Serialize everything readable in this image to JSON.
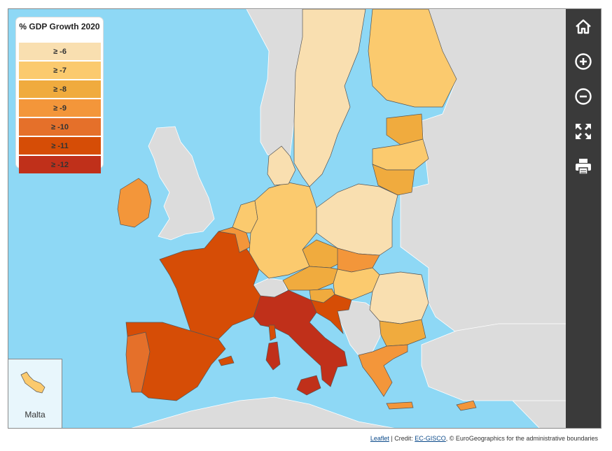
{
  "legend": {
    "title": "% GDP Growth 2020",
    "classes": [
      {
        "label": "≥ -6",
        "color": "#f9dfb0"
      },
      {
        "label": "≥ -7",
        "color": "#fbca6e"
      },
      {
        "label": "≥ -8",
        "color": "#f0ab3e"
      },
      {
        "label": "≥ -9",
        "color": "#f3963a"
      },
      {
        "label": "≥ -10",
        "color": "#e5702a"
      },
      {
        "label": "≥ -11",
        "color": "#d64d06"
      },
      {
        "label": "≥ -12",
        "color": "#c0301a"
      }
    ]
  },
  "map": {
    "sea_color": "#8ed8f5",
    "non_eu_color": "#dcdcdc",
    "countries": [
      {
        "name": "Ireland",
        "class": 3
      },
      {
        "name": "Portugal",
        "class": 4
      },
      {
        "name": "Spain",
        "class": 5
      },
      {
        "name": "France",
        "class": 5
      },
      {
        "name": "Belgium",
        "class": 3
      },
      {
        "name": "Netherlands",
        "class": 1
      },
      {
        "name": "Germany",
        "class": 1
      },
      {
        "name": "Denmark",
        "class": 0
      },
      {
        "name": "Sweden",
        "class": 0
      },
      {
        "name": "Finland",
        "class": 1
      },
      {
        "name": "Estonia",
        "class": 2
      },
      {
        "name": "Latvia",
        "class": 1
      },
      {
        "name": "Lithuania",
        "class": 2
      },
      {
        "name": "Poland",
        "class": 0
      },
      {
        "name": "Czechia",
        "class": 2
      },
      {
        "name": "Slovakia",
        "class": 3
      },
      {
        "name": "Austria",
        "class": 2
      },
      {
        "name": "Hungary",
        "class": 1
      },
      {
        "name": "Slovenia",
        "class": 2
      },
      {
        "name": "Croatia",
        "class": 5
      },
      {
        "name": "Italy",
        "class": 6
      },
      {
        "name": "Romania",
        "class": 0
      },
      {
        "name": "Bulgaria",
        "class": 2
      },
      {
        "name": "Greece",
        "class": 3
      },
      {
        "name": "Cyprus",
        "class": 3
      },
      {
        "name": "Malta",
        "class": 1
      }
    ]
  },
  "inset": {
    "label": "Malta"
  },
  "toolbar": [
    "home-icon",
    "zoom-in-icon",
    "zoom-out-icon",
    "fullscreen-icon",
    "print-icon"
  ],
  "attribution": {
    "leaflet": "Leaflet",
    "credit_prefix": " | Credit: ",
    "ecgisco": "EC-GISCO",
    "rest": ", © EuroGeographics for the administrative boundaries"
  }
}
